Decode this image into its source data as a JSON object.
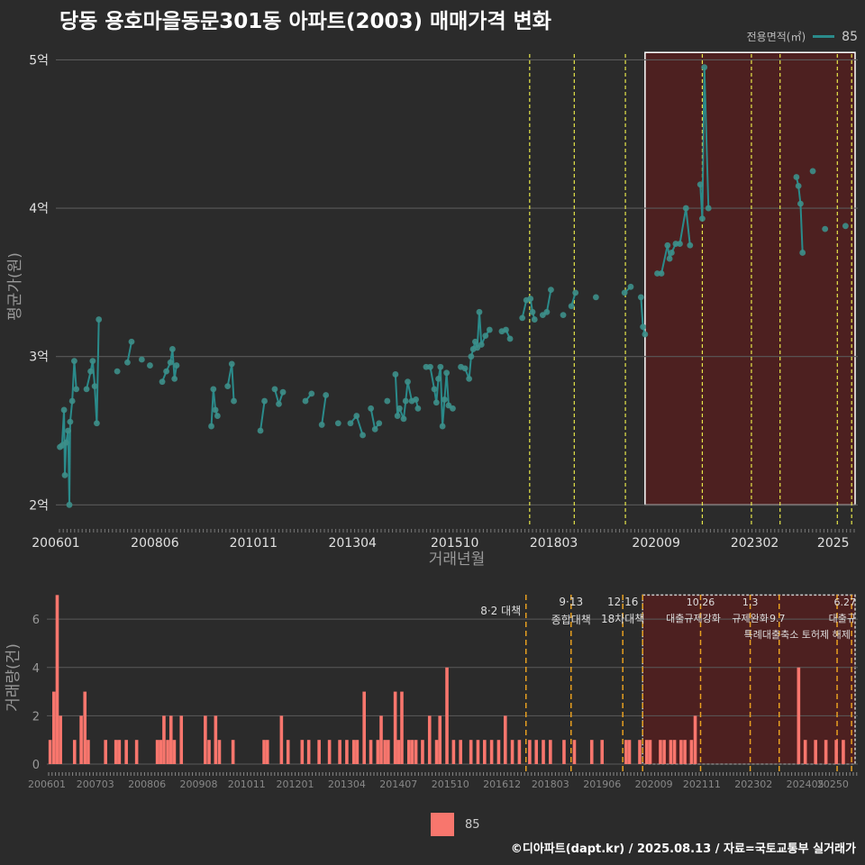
{
  "title": "당동 용호마을동문301동 아파트(2003) 매매가격 변화",
  "legend": {
    "title": "전용면적(㎡)",
    "series": "85"
  },
  "caption": "©디아파트(dapt.kr) / 2025.08.13 / 자료=국토교통부 실거래가",
  "colors": {
    "line": "#2a8b8b",
    "point": "#3d8f8a",
    "bar": "#f8766d",
    "vline_top": "#e8e84a",
    "vline_bottom": "#e8a020",
    "shade": "#5a1e1e"
  },
  "chart_data": [
    {
      "type": "line",
      "ylabel": "평균가(원)",
      "xlabel": "거래년월",
      "yticks": [
        2,
        3,
        4,
        5
      ],
      "ytick_labels": [
        "2억",
        "3억",
        "4억",
        "5억"
      ],
      "ylim": [
        1.85,
        5.1
      ],
      "xlim": [
        2006.0,
        2025.6
      ],
      "xticks": [
        2006.0,
        2008.42,
        2010.83,
        2013.25,
        2015.75,
        2018.17,
        2020.67,
        2023.08,
        2025.0
      ],
      "xtick_labels": [
        "200601",
        "200806",
        "201011",
        "201304",
        "201510",
        "201803",
        "202009",
        "202302",
        "2025"
      ],
      "vlines": [
        2017.58,
        2018.67,
        2019.92,
        2021.8,
        2023.0,
        2023.7,
        2025.1,
        2025.45
      ],
      "highlight": {
        "x": [
          2020.4,
          2025.6
        ],
        "y": [
          2.0,
          5.05
        ]
      },
      "series": [
        {
          "name": "85",
          "points": [
            [
              2006.1,
              2.39
            ],
            [
              2006.15,
              2.4
            ],
            [
              2006.2,
              2.64
            ],
            [
              2006.22,
              2.2
            ],
            [
              2006.25,
              2.42
            ],
            [
              2006.3,
              2.5
            ],
            [
              2006.33,
              2.0
            ],
            [
              2006.35,
              2.56
            ],
            [
              2006.4,
              2.7
            ],
            [
              2006.45,
              2.97
            ],
            [
              2006.5,
              2.78
            ],
            [
              2006.75,
              2.78
            ],
            [
              2006.85,
              2.9
            ],
            [
              2006.9,
              2.97
            ],
            [
              2006.95,
              2.8
            ],
            [
              2007.0,
              2.55
            ],
            [
              2007.05,
              3.25
            ],
            [
              2007.5,
              2.9
            ],
            [
              2007.75,
              2.96
            ],
            [
              2007.85,
              3.1
            ],
            [
              2008.1,
              2.98
            ],
            [
              2008.3,
              2.94
            ],
            [
              2008.6,
              2.83
            ],
            [
              2008.7,
              2.9
            ],
            [
              2008.8,
              2.96
            ],
            [
              2008.85,
              3.05
            ],
            [
              2008.9,
              2.85
            ],
            [
              2008.95,
              2.94
            ],
            [
              2009.8,
              2.53
            ],
            [
              2009.85,
              2.78
            ],
            [
              2009.9,
              2.64
            ],
            [
              2009.95,
              2.6
            ],
            [
              2010.2,
              2.8
            ],
            [
              2010.3,
              2.95
            ],
            [
              2010.35,
              2.7
            ],
            [
              2011.0,
              2.5
            ],
            [
              2011.1,
              2.7
            ],
            [
              2011.35,
              2.78
            ],
            [
              2011.45,
              2.68
            ],
            [
              2011.55,
              2.76
            ],
            [
              2012.1,
              2.7
            ],
            [
              2012.25,
              2.75
            ],
            [
              2012.5,
              2.54
            ],
            [
              2012.6,
              2.74
            ],
            [
              2012.9,
              2.55
            ],
            [
              2013.2,
              2.55
            ],
            [
              2013.35,
              2.6
            ],
            [
              2013.5,
              2.47
            ],
            [
              2013.7,
              2.65
            ],
            [
              2013.8,
              2.51
            ],
            [
              2013.9,
              2.55
            ],
            [
              2014.1,
              2.7
            ],
            [
              2014.3,
              2.88
            ],
            [
              2014.35,
              2.6
            ],
            [
              2014.4,
              2.65
            ],
            [
              2014.5,
              2.58
            ],
            [
              2014.55,
              2.7
            ],
            [
              2014.6,
              2.83
            ],
            [
              2014.7,
              2.7
            ],
            [
              2014.8,
              2.71
            ],
            [
              2014.85,
              2.65
            ],
            [
              2015.05,
              2.93
            ],
            [
              2015.15,
              2.93
            ],
            [
              2015.25,
              2.78
            ],
            [
              2015.3,
              2.69
            ],
            [
              2015.35,
              2.85
            ],
            [
              2015.4,
              2.93
            ],
            [
              2015.45,
              2.53
            ],
            [
              2015.5,
              2.71
            ],
            [
              2015.55,
              2.89
            ],
            [
              2015.6,
              2.67
            ],
            [
              2015.7,
              2.65
            ],
            [
              2015.9,
              2.93
            ],
            [
              2016.0,
              2.92
            ],
            [
              2016.1,
              2.85
            ],
            [
              2016.15,
              3.0
            ],
            [
              2016.2,
              3.05
            ],
            [
              2016.25,
              3.1
            ],
            [
              2016.3,
              3.06
            ],
            [
              2016.35,
              3.3
            ],
            [
              2016.4,
              3.08
            ],
            [
              2016.5,
              3.14
            ],
            [
              2016.6,
              3.18
            ],
            [
              2016.9,
              3.17
            ],
            [
              2017.0,
              3.18
            ],
            [
              2017.1,
              3.12
            ],
            [
              2017.4,
              3.26
            ],
            [
              2017.5,
              3.38
            ],
            [
              2017.6,
              3.39
            ],
            [
              2017.65,
              3.3
            ],
            [
              2017.7,
              3.25
            ],
            [
              2017.9,
              3.28
            ],
            [
              2018.0,
              3.3
            ],
            [
              2018.1,
              3.45
            ],
            [
              2018.4,
              3.28
            ],
            [
              2018.6,
              3.34
            ],
            [
              2018.7,
              3.43
            ],
            [
              2019.2,
              3.4
            ],
            [
              2019.9,
              3.43
            ],
            [
              2020.05,
              3.47
            ],
            [
              2020.3,
              3.4
            ],
            [
              2020.35,
              3.2
            ],
            [
              2020.4,
              3.15
            ],
            [
              2020.7,
              3.56
            ],
            [
              2020.8,
              3.56
            ],
            [
              2020.95,
              3.75
            ],
            [
              2021.0,
              3.66
            ],
            [
              2021.05,
              3.7
            ],
            [
              2021.15,
              3.76
            ],
            [
              2021.25,
              3.76
            ],
            [
              2021.4,
              4.0
            ],
            [
              2021.5,
              3.75
            ],
            [
              2021.75,
              4.16
            ],
            [
              2021.8,
              3.93
            ],
            [
              2021.85,
              4.95
            ],
            [
              2021.95,
              4.0
            ],
            [
              2024.1,
              4.21
            ],
            [
              2024.15,
              4.15
            ],
            [
              2024.2,
              4.03
            ],
            [
              2024.25,
              3.7
            ],
            [
              2024.5,
              4.25
            ],
            [
              2024.8,
              3.86
            ],
            [
              2025.3,
              3.88
            ]
          ]
        }
      ]
    },
    {
      "type": "bar",
      "ylabel": "거래량(건)",
      "yticks": [
        0,
        2,
        4,
        6
      ],
      "ytick_labels": [
        "0",
        "2",
        "4",
        "6"
      ],
      "ylim": [
        0,
        7.2
      ],
      "xticks": [
        2006.0,
        2007.17,
        2008.42,
        2009.67,
        2010.83,
        2012.0,
        2013.25,
        2014.5,
        2015.75,
        2017.0,
        2018.17,
        2019.42,
        2020.67,
        2021.83,
        2023.08,
        2024.33,
        2025.0
      ],
      "xtick_labels": [
        "200601",
        "200703",
        "200806",
        "200908",
        "201011",
        "201201",
        "201304",
        "201407",
        "201510",
        "201612",
        "201803",
        "201906",
        "202009",
        "202111",
        "202302",
        "202405",
        "20250"
      ],
      "vlines": [
        2017.58,
        2018.67,
        2019.92,
        2020.4,
        2021.8,
        2023.0,
        2023.7,
        2025.1,
        2025.45
      ],
      "highlight": {
        "x": [
          2020.4,
          2025.6
        ],
        "y": [
          0,
          7.0
        ]
      },
      "annotations": [
        {
          "x": 2017.58,
          "line1": "8·2 대책",
          "line2": ""
        },
        {
          "x": 2018.67,
          "line1": "9·13",
          "line2": "종합대책"
        },
        {
          "x": 2019.92,
          "line1": "12·16",
          "line2": "18차대책"
        },
        {
          "x": 2021.8,
          "line1": "10.26",
          "line2": "대출규제강화"
        },
        {
          "x": 2023.0,
          "line1": "1.3",
          "line2": "규제완화"
        },
        {
          "x": 2023.7,
          "line1": "",
          "line2": "9.7"
        },
        {
          "x": 2023.7,
          "line1": "",
          "line2": "특례대출축소 토허제 해제"
        },
        {
          "x": 2025.45,
          "line1": "6.27",
          "line2": "대출규"
        }
      ],
      "series": [
        {
          "name": "85",
          "points": [
            [
              2006.08,
              1
            ],
            [
              2006.17,
              3
            ],
            [
              2006.25,
              7
            ],
            [
              2006.33,
              2
            ],
            [
              2006.67,
              1
            ],
            [
              2006.83,
              2
            ],
            [
              2006.92,
              3
            ],
            [
              2007.0,
              1
            ],
            [
              2007.42,
              1
            ],
            [
              2007.67,
              1
            ],
            [
              2007.75,
              1
            ],
            [
              2007.92,
              1
            ],
            [
              2008.17,
              1
            ],
            [
              2008.67,
              1
            ],
            [
              2008.75,
              1
            ],
            [
              2008.83,
              2
            ],
            [
              2008.92,
              1
            ],
            [
              2009.0,
              2
            ],
            [
              2009.08,
              1
            ],
            [
              2009.25,
              2
            ],
            [
              2009.83,
              2
            ],
            [
              2009.92,
              1
            ],
            [
              2010.08,
              2
            ],
            [
              2010.17,
              1
            ],
            [
              2010.5,
              1
            ],
            [
              2011.25,
              1
            ],
            [
              2011.33,
              1
            ],
            [
              2011.67,
              2
            ],
            [
              2011.83,
              1
            ],
            [
              2012.17,
              1
            ],
            [
              2012.33,
              1
            ],
            [
              2012.58,
              1
            ],
            [
              2012.83,
              1
            ],
            [
              2013.08,
              1
            ],
            [
              2013.25,
              1
            ],
            [
              2013.42,
              1
            ],
            [
              2013.5,
              1
            ],
            [
              2013.67,
              3
            ],
            [
              2013.83,
              1
            ],
            [
              2014.0,
              1
            ],
            [
              2014.08,
              2
            ],
            [
              2014.17,
              1
            ],
            [
              2014.25,
              1
            ],
            [
              2014.42,
              3
            ],
            [
              2014.5,
              1
            ],
            [
              2014.58,
              3
            ],
            [
              2014.75,
              1
            ],
            [
              2014.83,
              1
            ],
            [
              2014.92,
              1
            ],
            [
              2015.08,
              1
            ],
            [
              2015.25,
              2
            ],
            [
              2015.42,
              1
            ],
            [
              2015.5,
              2
            ],
            [
              2015.67,
              4
            ],
            [
              2015.83,
              1
            ],
            [
              2016.0,
              1
            ],
            [
              2016.25,
              1
            ],
            [
              2016.42,
              1
            ],
            [
              2016.58,
              1
            ],
            [
              2016.75,
              1
            ],
            [
              2016.92,
              1
            ],
            [
              2017.08,
              2
            ],
            [
              2017.25,
              1
            ],
            [
              2017.42,
              1
            ],
            [
              2017.67,
              1
            ],
            [
              2017.83,
              1
            ],
            [
              2018.0,
              1
            ],
            [
              2018.17,
              1
            ],
            [
              2018.5,
              1
            ],
            [
              2018.75,
              1
            ],
            [
              2019.17,
              1
            ],
            [
              2019.42,
              1
            ],
            [
              2020.0,
              1
            ],
            [
              2020.08,
              1
            ],
            [
              2020.33,
              1
            ],
            [
              2020.5,
              1
            ],
            [
              2020.58,
              1
            ],
            [
              2020.83,
              1
            ],
            [
              2020.92,
              1
            ],
            [
              2021.08,
              1
            ],
            [
              2021.17,
              1
            ],
            [
              2021.33,
              1
            ],
            [
              2021.42,
              1
            ],
            [
              2021.58,
              1
            ],
            [
              2021.67,
              2
            ],
            [
              2024.17,
              4
            ],
            [
              2024.33,
              1
            ],
            [
              2024.58,
              1
            ],
            [
              2024.83,
              1
            ],
            [
              2025.08,
              1
            ],
            [
              2025.25,
              1
            ]
          ]
        }
      ]
    }
  ]
}
